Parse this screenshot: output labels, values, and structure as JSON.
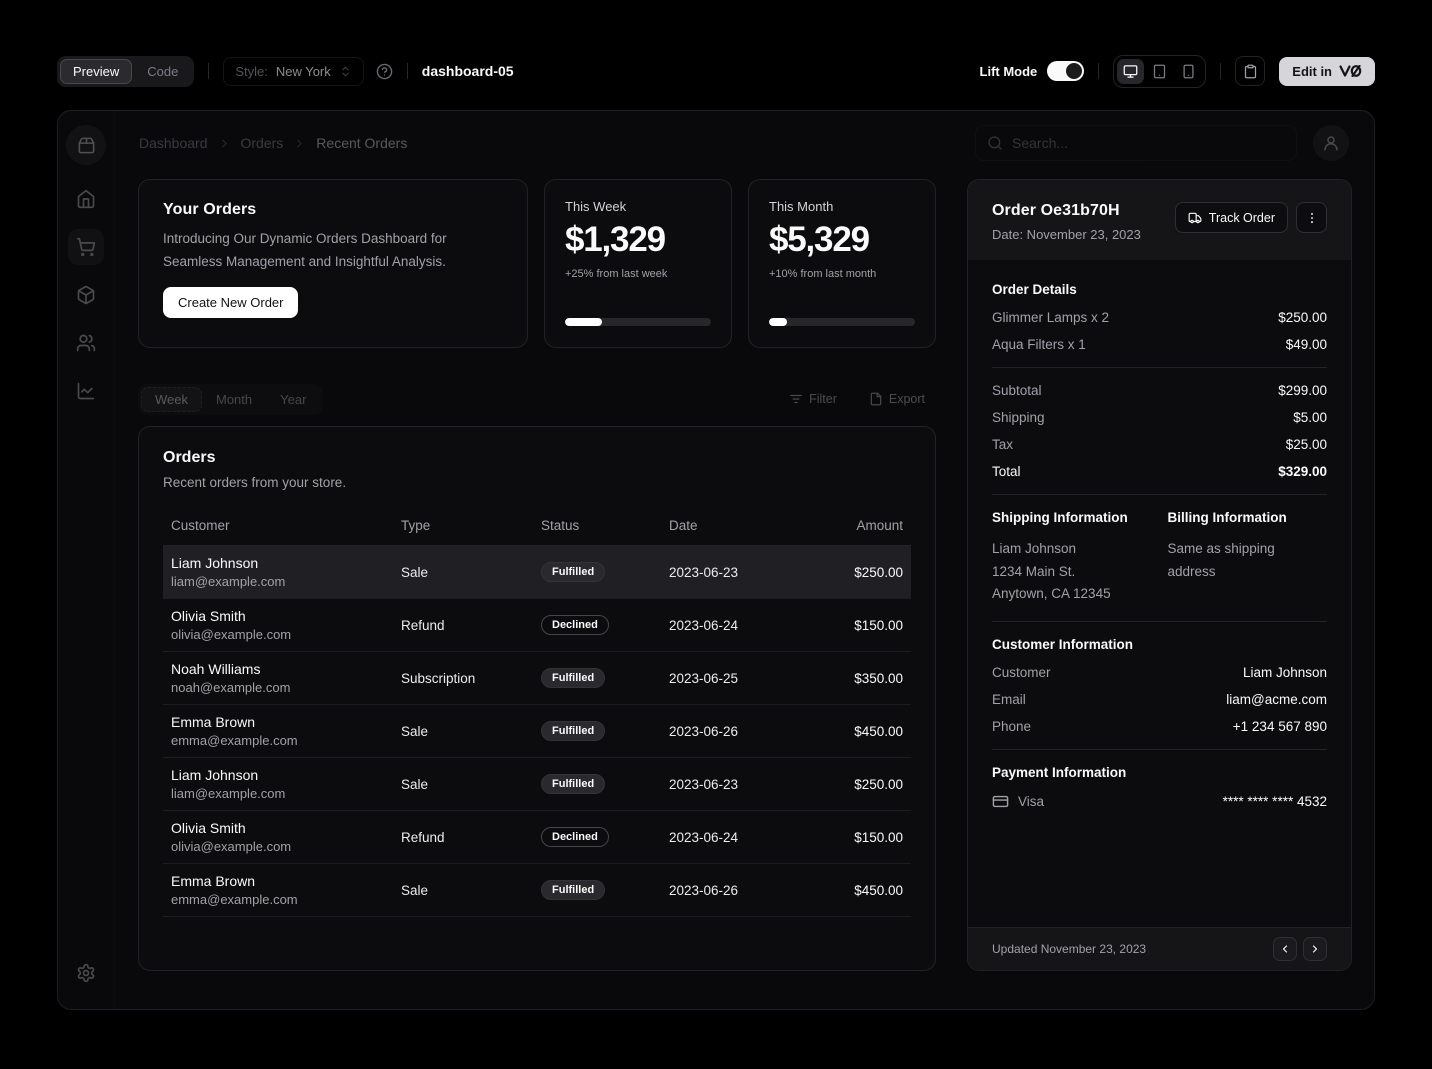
{
  "toolbar": {
    "preview_tab": "Preview",
    "code_tab": "Code",
    "style_label": "Style:",
    "style_value": "New York",
    "page_name": "dashboard-05",
    "lift_mode_label": "Lift Mode",
    "edit_in_label": "Edit in"
  },
  "header": {
    "breadcrumb": [
      "Dashboard",
      "Orders",
      "Recent Orders"
    ],
    "search_placeholder": "Search..."
  },
  "intro": {
    "title": "Your Orders",
    "description": "Introducing Our Dynamic Orders Dashboard for Seamless Management and Insightful Analysis.",
    "button": "Create New Order"
  },
  "stats": [
    {
      "label": "This Week",
      "value": "$1,329",
      "note": "+25% from last week",
      "progress": 25
    },
    {
      "label": "This Month",
      "value": "$5,329",
      "note": "+10% from last month",
      "progress": 12
    }
  ],
  "period_tabs": [
    {
      "label": "Week",
      "active": true
    },
    {
      "label": "Month",
      "active": false
    },
    {
      "label": "Year",
      "active": false
    }
  ],
  "actions": {
    "filter": "Filter",
    "export": "Export"
  },
  "orders": {
    "title": "Orders",
    "description": "Recent orders from your store.",
    "columns": [
      "Customer",
      "Type",
      "Status",
      "Date",
      "Amount"
    ],
    "rows": [
      {
        "name": "Liam Johnson",
        "email": "liam@example.com",
        "type": "Sale",
        "status": "Fulfilled",
        "variant": "secondary",
        "date": "2023-06-23",
        "amount": "$250.00",
        "selected": true
      },
      {
        "name": "Olivia Smith",
        "email": "olivia@example.com",
        "type": "Refund",
        "status": "Declined",
        "variant": "outline",
        "date": "2023-06-24",
        "amount": "$150.00",
        "selected": false
      },
      {
        "name": "Noah Williams",
        "email": "noah@example.com",
        "type": "Subscription",
        "status": "Fulfilled",
        "variant": "secondary",
        "date": "2023-06-25",
        "amount": "$350.00",
        "selected": false
      },
      {
        "name": "Emma Brown",
        "email": "emma@example.com",
        "type": "Sale",
        "status": "Fulfilled",
        "variant": "secondary",
        "date": "2023-06-26",
        "amount": "$450.00",
        "selected": false
      },
      {
        "name": "Liam Johnson",
        "email": "liam@example.com",
        "type": "Sale",
        "status": "Fulfilled",
        "variant": "secondary",
        "date": "2023-06-23",
        "amount": "$250.00",
        "selected": false
      },
      {
        "name": "Olivia Smith",
        "email": "olivia@example.com",
        "type": "Refund",
        "status": "Declined",
        "variant": "outline",
        "date": "2023-06-24",
        "amount": "$150.00",
        "selected": false
      },
      {
        "name": "Emma Brown",
        "email": "emma@example.com",
        "type": "Sale",
        "status": "Fulfilled",
        "variant": "secondary",
        "date": "2023-06-26",
        "amount": "$450.00",
        "selected": false
      }
    ]
  },
  "order_panel": {
    "title": "Order Oe31b70H",
    "date": "Date: November 23, 2023",
    "track_button": "Track Order",
    "details_title": "Order Details",
    "items": [
      {
        "label": "Glimmer Lamps x 2",
        "value": "$250.00"
      },
      {
        "label": "Aqua Filters x 1",
        "value": "$49.00"
      }
    ],
    "totals": [
      {
        "label": "Subtotal",
        "value": "$299.00"
      },
      {
        "label": "Shipping",
        "value": "$5.00"
      },
      {
        "label": "Tax",
        "value": "$25.00"
      },
      {
        "label": "Total",
        "value": "$329.00"
      }
    ],
    "shipping_title": "Shipping Information",
    "shipping_lines": [
      "Liam Johnson",
      "1234 Main St.",
      "Anytown, CA 12345"
    ],
    "billing_title": "Billing Information",
    "billing_text": "Same as shipping address",
    "customer_title": "Customer Information",
    "customer_rows": [
      {
        "label": "Customer",
        "value": "Liam Johnson"
      },
      {
        "label": "Email",
        "value": "liam@acme.com"
      },
      {
        "label": "Phone",
        "value": "+1 234 567 890"
      }
    ],
    "payment_title": "Payment Information",
    "payment_method": "Visa",
    "payment_number": "**** **** **** 4532",
    "footer_text": "Updated November 23, 2023"
  },
  "colors": {
    "page_bg": "#000000",
    "frame_bg": "#09090b",
    "card_bg": "#0c0c0e",
    "muted_surface": "#151518",
    "accent": "#ffffff",
    "muted_text": "#a1a1aa"
  }
}
